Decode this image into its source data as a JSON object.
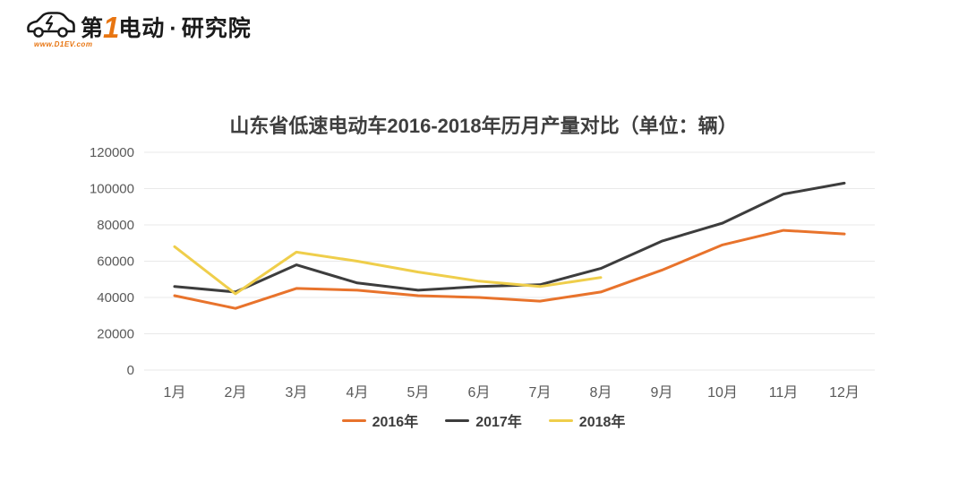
{
  "page": {
    "background": "#ffffff"
  },
  "logo": {
    "brand_first": "第",
    "brand_number": "1",
    "brand_second": "电动",
    "separator": "·",
    "brand_third": "研究院",
    "url": "www.D1EV.com",
    "accent_color": "#e87511",
    "ink_color": "#1a1a1a"
  },
  "chart_data": {
    "type": "line",
    "title": "山东省低速电动车2016-2018年历月产量对比（单位：辆）",
    "categories": [
      "1月",
      "2月",
      "3月",
      "4月",
      "5月",
      "6月",
      "7月",
      "8月",
      "9月",
      "10月",
      "11月",
      "12月"
    ],
    "series": [
      {
        "name": "2016年",
        "color": "#e8732c",
        "values": [
          41000,
          34000,
          45000,
          44000,
          41000,
          40000,
          38000,
          43000,
          55000,
          69000,
          77000,
          75000
        ]
      },
      {
        "name": "2017年",
        "color": "#3d3d3d",
        "values": [
          46000,
          43000,
          58000,
          48000,
          44000,
          46000,
          47000,
          56000,
          71000,
          81000,
          97000,
          103000
        ]
      },
      {
        "name": "2018年",
        "color": "#efce4b",
        "values": [
          68000,
          42000,
          65000,
          60000,
          54000,
          49000,
          46000,
          51000
        ]
      }
    ],
    "ylim": [
      0,
      120000
    ],
    "yticks": [
      0,
      20000,
      40000,
      60000,
      80000,
      100000,
      120000
    ],
    "grid": true,
    "gridline_color": "#e9e9e9",
    "axis_text_color": "#595959",
    "legend_position": "bottom"
  }
}
